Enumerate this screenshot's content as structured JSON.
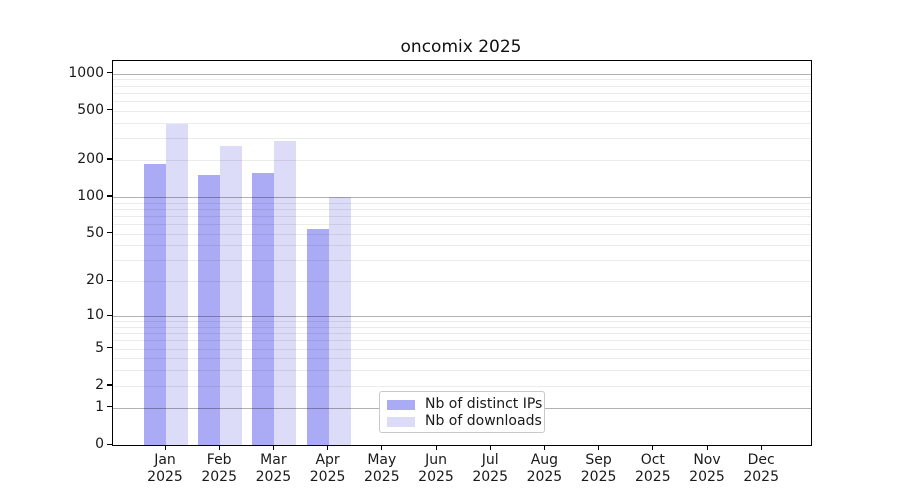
{
  "figure": {
    "title": "oncomix 2025"
  },
  "chart_data": {
    "type": "bar",
    "title": "oncomix 2025",
    "categories": [
      "Jan 2025",
      "Feb 2025",
      "Mar 2025",
      "Apr 2025",
      "May 2025",
      "Jun 2025",
      "Jul 2025",
      "Aug 2025",
      "Sep 2025",
      "Oct 2025",
      "Nov 2025",
      "Dec 2025"
    ],
    "series": [
      {
        "name": "Nb of distinct IPs",
        "color": "#ababf5",
        "values": [
          185,
          150,
          158,
          55,
          0,
          0,
          0,
          0,
          0,
          0,
          0,
          0
        ]
      },
      {
        "name": "Nb of downloads",
        "color": "#dcdcf9",
        "values": [
          390,
          260,
          285,
          100,
          0,
          0,
          0,
          0,
          0,
          0,
          0,
          0
        ]
      }
    ],
    "yscale": "log10(value+1)",
    "yticks": [
      0,
      1,
      2,
      5,
      10,
      20,
      50,
      100,
      200,
      500,
      1000
    ],
    "ytick_labels": [
      "0",
      "1",
      "2",
      "5",
      "10",
      "20",
      "50",
      "100",
      "200",
      "500",
      "1000"
    ],
    "ylim": [
      0,
      1273
    ],
    "grid": "major dark at 1,10,100,1000; light minors at 2-9 per decade, drawn over bars",
    "legend": {
      "position": "bottom-center",
      "entries": [
        "Nb of distinct IPs",
        "Nb of downloads"
      ]
    },
    "colors": {
      "major_grid": "#b0b0b0",
      "minor_grid": "#ebebeb",
      "axis": "#000000",
      "background": "#ffffff"
    }
  }
}
